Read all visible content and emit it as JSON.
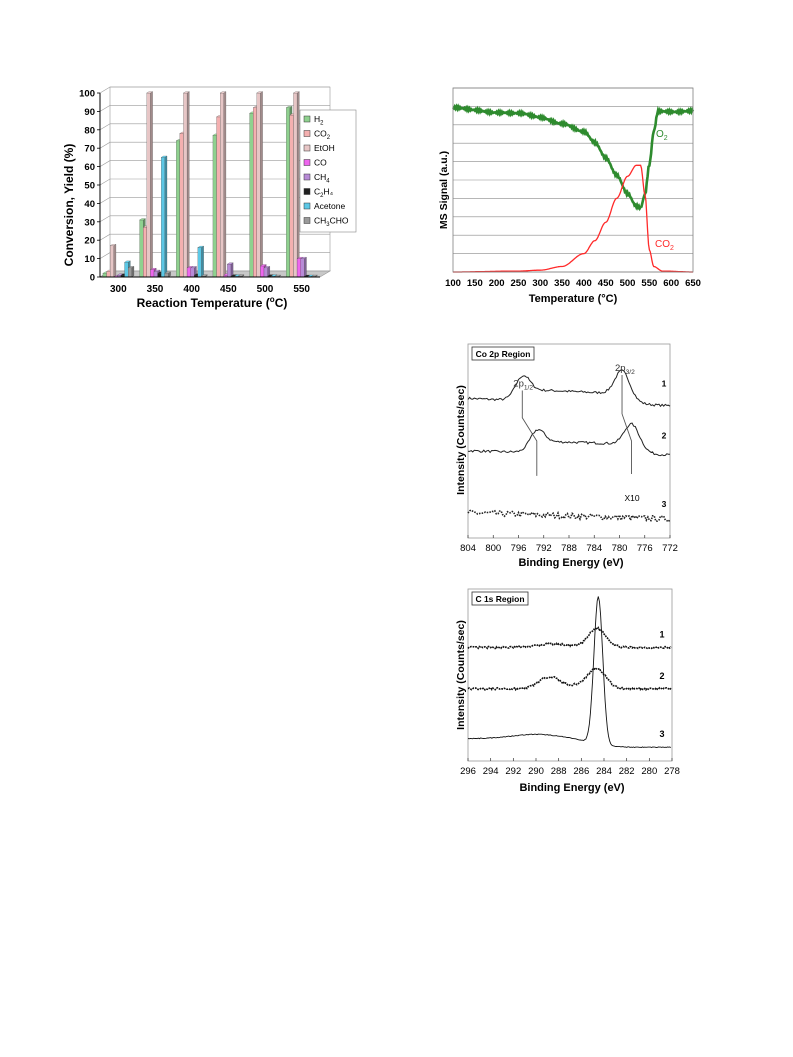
{
  "chart_data": [
    {
      "type": "bar",
      "xlabel_pre": "Reaction Temperature (",
      "xlabel_sup": "o",
      "xlabel_post": "C)",
      "ylabel": "Conversion, Yield (%)",
      "ylim": [
        0,
        100
      ],
      "yticks": [
        0,
        10,
        20,
        30,
        40,
        50,
        60,
        70,
        80,
        90,
        100
      ],
      "categories": [
        "300",
        "350",
        "400",
        "450",
        "500",
        "550"
      ],
      "grid": true,
      "legend_position": "right",
      "series": [
        {
          "name": "H",
          "sub": "2",
          "post": "",
          "color": "#8fd18f",
          "values": [
            2,
            31,
            74,
            77,
            89,
            92
          ]
        },
        {
          "name": "CO",
          "sub": "2",
          "post": "",
          "color": "#f4b0b0",
          "values": [
            3,
            27,
            78,
            87,
            92,
            88
          ]
        },
        {
          "name": "EtOH",
          "sub": "",
          "post": "",
          "color": "#e7c6c6",
          "values": [
            17,
            100,
            100,
            100,
            100,
            100
          ]
        },
        {
          "name": "CO",
          "sub": "",
          "post": "",
          "color": "#ee66ee",
          "values": [
            0,
            4,
            5,
            1,
            6,
            10
          ]
        },
        {
          "name": "CH",
          "sub": "4",
          "post": "",
          "color": "#b78bd6",
          "values": [
            1,
            3,
            5,
            7,
            5,
            10
          ]
        },
        {
          "name": "C",
          "sub": "2",
          "post": "H₄",
          "color": "#202020",
          "values": [
            1,
            2,
            1,
            0.5,
            0.5,
            0.3
          ]
        },
        {
          "name": "Acetone",
          "sub": "",
          "post": "",
          "color": "#5cc8e6",
          "values": [
            8,
            65,
            16,
            0.5,
            0.5,
            0.3
          ]
        },
        {
          "name": "CH",
          "sub": "3",
          "post": "CHO",
          "color": "#9a9a9a",
          "values": [
            5,
            2,
            0.5,
            0.5,
            0.3,
            0.3
          ]
        }
      ]
    },
    {
      "type": "line",
      "xlabel": "Temperature (°C)",
      "ylabel": "MS Signal (a.u.)",
      "xlim": [
        100,
        650
      ],
      "xticks": [
        100,
        150,
        200,
        250,
        300,
        350,
        400,
        450,
        500,
        550,
        600,
        650
      ],
      "ylim": [
        0,
        1
      ],
      "grid": true,
      "series": [
        {
          "name": "O",
          "sub": "2",
          "color": "#2e8b2e",
          "x": [
            100,
            150,
            200,
            250,
            300,
            350,
            400,
            425,
            450,
            475,
            500,
            520,
            530,
            540,
            550,
            560,
            570,
            600,
            650
          ],
          "y": [
            0.89,
            0.88,
            0.87,
            0.86,
            0.84,
            0.81,
            0.76,
            0.7,
            0.62,
            0.53,
            0.43,
            0.36,
            0.35,
            0.42,
            0.58,
            0.76,
            0.87,
            0.87,
            0.88
          ]
        },
        {
          "name": "CO",
          "sub": "2",
          "color": "#ff2a2a",
          "x": [
            100,
            250,
            300,
            350,
            400,
            425,
            450,
            475,
            500,
            520,
            530,
            540,
            550,
            560,
            580,
            650
          ],
          "y": [
            0.0,
            0.005,
            0.01,
            0.03,
            0.1,
            0.17,
            0.27,
            0.4,
            0.52,
            0.58,
            0.58,
            0.42,
            0.12,
            0.03,
            0.005,
            0.0
          ]
        }
      ]
    },
    {
      "type": "line",
      "title": "Co 2p Region",
      "xlabel": "Binding Energy (eV)",
      "ylabel": "Intensity (Counts/sec)",
      "xlim": [
        804,
        772
      ],
      "xticks": [
        804,
        800,
        796,
        792,
        788,
        784,
        780,
        776,
        772
      ],
      "annotations": {
        "peak_a_main": "2p",
        "peak_a_sub": "1/2",
        "peak_b_main": "2p",
        "peak_b_sub": "3/2",
        "scale": "X10"
      },
      "series": [
        {
          "name": "1",
          "peaks": [
            [
              795.4,
              0.45
            ],
            [
              779.6,
              0.55
            ]
          ],
          "offset": 0.72
        },
        {
          "name": "2",
          "peaks": [
            [
              793.1,
              0.4
            ],
            [
              778.1,
              0.48
            ]
          ],
          "offset": 0.45
        },
        {
          "name": "3",
          "peaks": [],
          "offset": 0.13
        }
      ]
    },
    {
      "type": "line",
      "title": "C 1s Region",
      "xlabel": "Binding Energy (eV)",
      "ylabel": "Intensity (Counts/sec)",
      "xlim": [
        296,
        278
      ],
      "xticks": [
        296,
        294,
        292,
        290,
        288,
        286,
        284,
        282,
        280,
        278
      ],
      "series": [
        {
          "name": "1",
          "offset": 0.66
        },
        {
          "name": "2",
          "offset": 0.42
        },
        {
          "name": "3",
          "offset": 0.08
        }
      ]
    }
  ]
}
